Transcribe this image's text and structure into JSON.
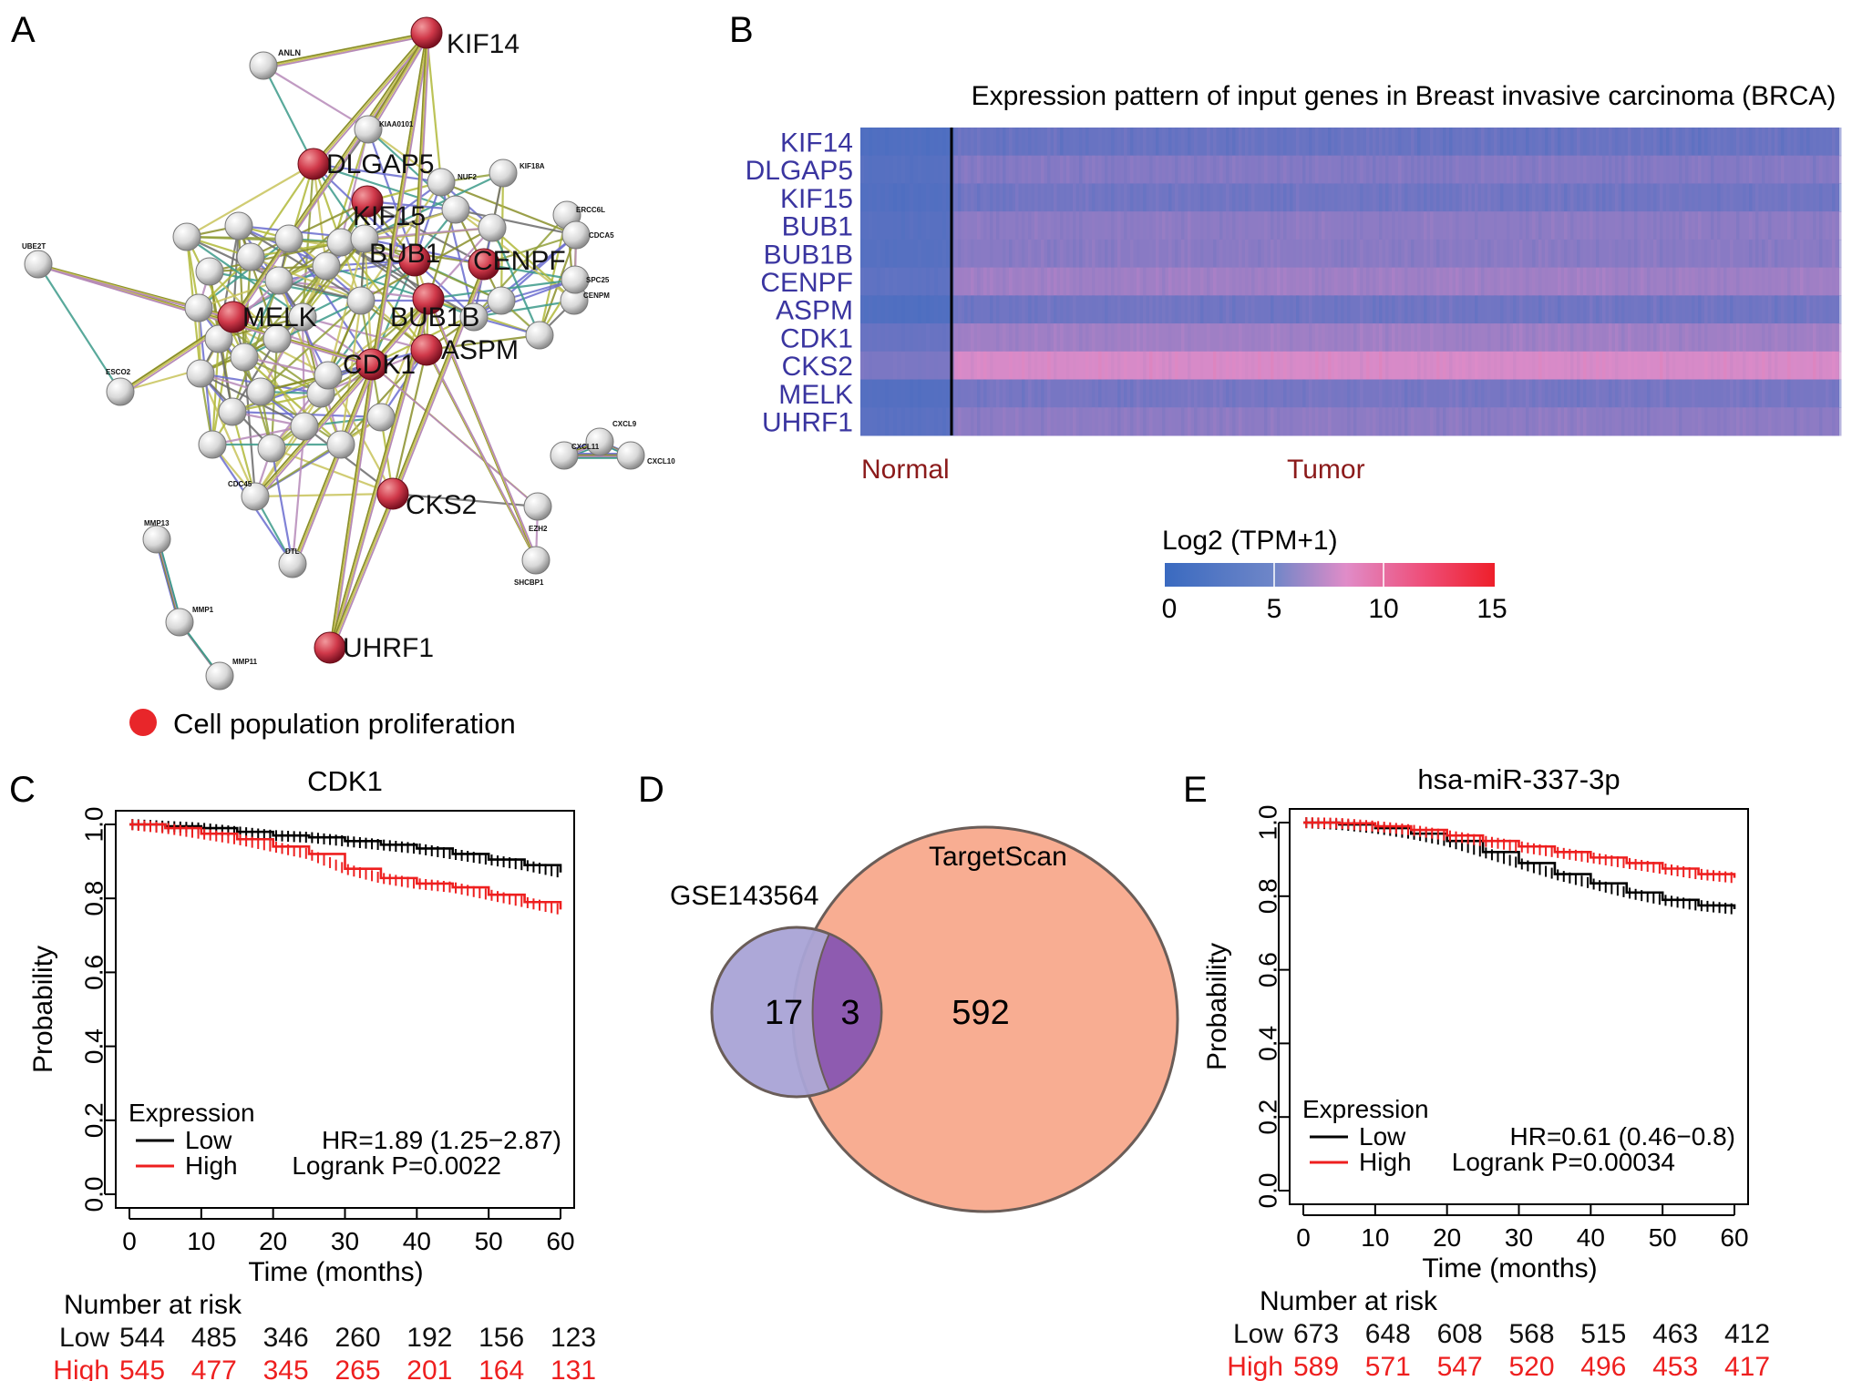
{
  "colors": {
    "accent_red": "#e8262a",
    "gene_blue": "#3a35a0",
    "normal_tumor_label": "#8b1a1a",
    "heat_low": "#3a6ac0",
    "heat_mid": "#e08cc8",
    "heat_high": "#ee1f2a",
    "venn_left": "#a9a3d6",
    "venn_right": "#f8ad92",
    "venn_overlap": "#8e5bb0",
    "km_low": "#000000",
    "km_high": "#ee1f1f"
  },
  "panels": {
    "A": {
      "letter": "A",
      "network_nodes": [
        {
          "label": "KIF14",
          "highlighted": true
        },
        {
          "label": "ANLN",
          "highlighted": false
        },
        {
          "label": "KIAA0101",
          "highlighted": false
        },
        {
          "label": "DLGAP5",
          "highlighted": true
        },
        {
          "label": "NUF2",
          "highlighted": false
        },
        {
          "label": "KIF18A",
          "highlighted": false
        },
        {
          "label": "ERCC6L",
          "highlighted": false
        },
        {
          "label": "KIF15",
          "highlighted": true
        },
        {
          "label": "CDCA5",
          "highlighted": false
        },
        {
          "label": "UBE2T",
          "highlighted": false
        },
        {
          "label": "BUB1",
          "highlighted": true
        },
        {
          "label": "CENPF",
          "highlighted": true
        },
        {
          "label": "CENPM",
          "highlighted": false
        },
        {
          "label": "BUB1B",
          "highlighted": true
        },
        {
          "label": "SPC25",
          "highlighted": false
        },
        {
          "label": "MELK",
          "highlighted": true
        },
        {
          "label": "CDK1",
          "highlighted": true
        },
        {
          "label": "ASPM",
          "highlighted": true
        },
        {
          "label": "ESCO2",
          "highlighted": false
        },
        {
          "label": "CXCL9",
          "highlighted": false
        },
        {
          "label": "CXCL11",
          "highlighted": false
        },
        {
          "label": "CXCL10",
          "highlighted": false
        },
        {
          "label": "CKS2",
          "highlighted": true
        },
        {
          "label": "EZH2",
          "highlighted": false
        },
        {
          "label": "CDC45",
          "highlighted": false
        },
        {
          "label": "MMP13",
          "highlighted": false
        },
        {
          "label": "DTL",
          "highlighted": false
        },
        {
          "label": "SHCBP1",
          "highlighted": false
        },
        {
          "label": "MMP1",
          "highlighted": false
        },
        {
          "label": "UHRF1",
          "highlighted": true
        },
        {
          "label": "MMP11",
          "highlighted": false
        }
      ],
      "legend_label": "Cell population proliferation"
    },
    "B": {
      "letter": "B",
      "title": "Expression pattern of input genes in Breast invasive carcinoma (BRCA)",
      "group_labels": [
        "Normal",
        "Tumor"
      ],
      "colorbar_title": "Log2 (TPM+1)",
      "colorbar_ticks": [
        "0",
        "5",
        "10",
        "15"
      ]
    },
    "C": {
      "letter": "C"
    },
    "D": {
      "letter": "D"
    },
    "E": {
      "letter": "E"
    }
  },
  "chart_data": [
    {
      "type": "heatmap",
      "title": "Expression pattern of input genes in Breast invasive carcinoma (BRCA)",
      "rows": [
        "KIF14",
        "DLGAP5",
        "KIF15",
        "BUB1",
        "BUB1B",
        "CENPF",
        "ASPM",
        "CDK1",
        "CKS2",
        "MELK",
        "UHRF1"
      ],
      "columns": [
        "Normal",
        "Tumor"
      ],
      "values_log2_tpm": [
        [
          1.2,
          2.5
        ],
        [
          1.5,
          4.0
        ],
        [
          1.3,
          3.0
        ],
        [
          1.6,
          4.5
        ],
        [
          1.5,
          4.3
        ],
        [
          2.0,
          5.5
        ],
        [
          1.2,
          3.0
        ],
        [
          2.5,
          5.5
        ],
        [
          3.5,
          8.5
        ],
        [
          1.4,
          3.3
        ],
        [
          1.8,
          4.5
        ]
      ],
      "color_range": [
        0,
        15
      ],
      "colorbar_title": "Log2 (TPM+1)",
      "colorbar_ticks": [
        0,
        5,
        10,
        15
      ]
    },
    {
      "type": "line",
      "subtype": "kaplan-meier",
      "title": "CDK1",
      "xlabel": "Time (months)",
      "ylabel": "Probability",
      "xlim": [
        0,
        60
      ],
      "ylim": [
        0,
        1
      ],
      "xticks": [
        0,
        10,
        20,
        30,
        40,
        50,
        60
      ],
      "yticks": [
        "0.0",
        "0.2",
        "0.4",
        "0.6",
        "0.8",
        "1.0"
      ],
      "legend_title": "Expression",
      "series": [
        {
          "name": "Low",
          "x": [
            0,
            5,
            10,
            15,
            20,
            25,
            30,
            35,
            40,
            45,
            50,
            55,
            60
          ],
          "y": [
            1.0,
            0.995,
            0.99,
            0.98,
            0.97,
            0.965,
            0.955,
            0.945,
            0.935,
            0.92,
            0.905,
            0.89,
            0.87
          ]
        },
        {
          "name": "High",
          "x": [
            0,
            5,
            10,
            15,
            20,
            25,
            30,
            35,
            40,
            45,
            50,
            55,
            60
          ],
          "y": [
            1.0,
            0.99,
            0.975,
            0.96,
            0.94,
            0.92,
            0.88,
            0.855,
            0.84,
            0.83,
            0.81,
            0.79,
            0.77
          ]
        }
      ],
      "stats": {
        "hr": "HR=1.89 (1.25−2.87)",
        "logrank": "Logrank P=0.0022"
      },
      "risk_table": {
        "title": "Number at risk",
        "rows": [
          {
            "name": "Low",
            "values": [
              "544",
              "485",
              "346",
              "260",
              "192",
              "156",
              "123"
            ]
          },
          {
            "name": "High",
            "values": [
              "545",
              "477",
              "345",
              "265",
              "201",
              "164",
              "131"
            ]
          }
        ]
      }
    },
    {
      "type": "venn",
      "sets": [
        {
          "name": "GSE143564",
          "only": "17"
        },
        {
          "name": "TargetScan",
          "only": "592"
        }
      ],
      "overlap": "3"
    },
    {
      "type": "line",
      "subtype": "kaplan-meier",
      "title": "hsa-miR-337-3p",
      "xlabel": "Time (months)",
      "ylabel": "Probability",
      "xlim": [
        0,
        60
      ],
      "ylim": [
        0,
        1
      ],
      "xticks": [
        0,
        10,
        20,
        30,
        40,
        50,
        60
      ],
      "yticks": [
        "0.0",
        "0.2",
        "0.4",
        "0.6",
        "0.8",
        "1.0"
      ],
      "legend_title": "Expression",
      "series": [
        {
          "name": "Low",
          "x": [
            0,
            5,
            10,
            15,
            20,
            25,
            30,
            35,
            40,
            45,
            50,
            55,
            60
          ],
          "y": [
            1.0,
            0.995,
            0.985,
            0.97,
            0.95,
            0.92,
            0.89,
            0.86,
            0.835,
            0.81,
            0.79,
            0.775,
            0.765
          ]
        },
        {
          "name": "High",
          "x": [
            0,
            5,
            10,
            15,
            20,
            25,
            30,
            35,
            40,
            45,
            50,
            55,
            60
          ],
          "y": [
            1.0,
            0.998,
            0.99,
            0.98,
            0.965,
            0.95,
            0.935,
            0.92,
            0.905,
            0.89,
            0.875,
            0.86,
            0.85
          ]
        }
      ],
      "stats": {
        "hr": "HR=0.61 (0.46−0.8)",
        "logrank": "Logrank P=0.00034"
      },
      "risk_table": {
        "title": "Number at risk",
        "rows": [
          {
            "name": "Low",
            "values": [
              "673",
              "648",
              "608",
              "568",
              "515",
              "463",
              "412"
            ]
          },
          {
            "name": "High",
            "values": [
              "589",
              "571",
              "547",
              "520",
              "496",
              "453",
              "417"
            ]
          }
        ]
      }
    }
  ]
}
